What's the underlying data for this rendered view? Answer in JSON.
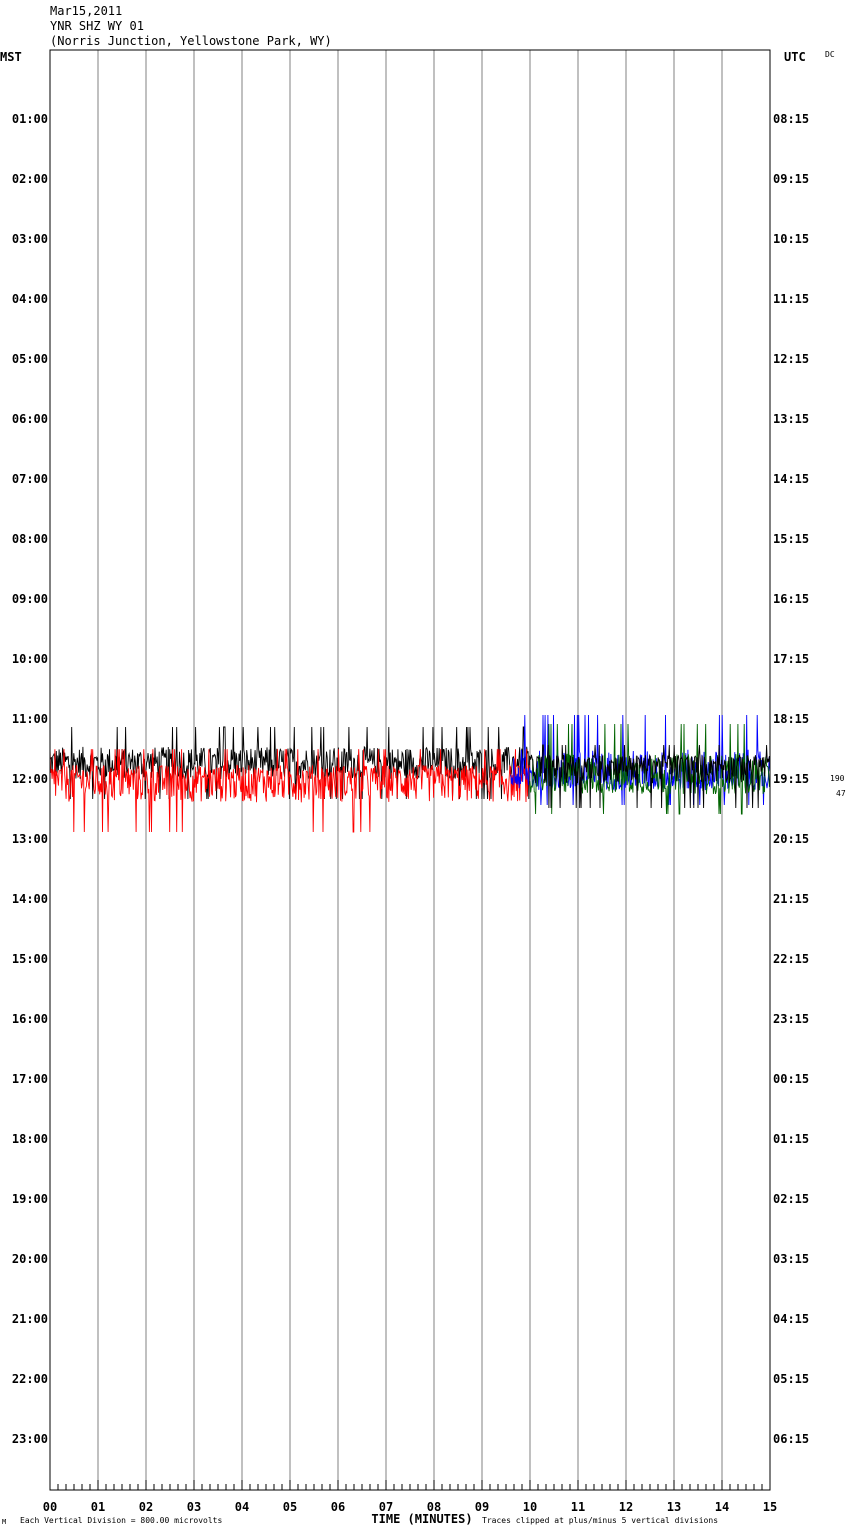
{
  "header": {
    "date": "Mar15,2011",
    "station": "YNR SHZ WY 01",
    "location": "(Norris Junction, Yellowstone Park, WY)"
  },
  "axes": {
    "left_zone": "MST",
    "right_zone": "UTC",
    "dc_label": "DC",
    "right_values": [
      "190",
      "47"
    ],
    "xlabel": "TIME (MINUTES)"
  },
  "footer": {
    "logo_mark": "M",
    "scale_note": "Each Vertical Division =  800.00 microvolts",
    "clip_note": "Traces clipped at plus/minus 5 vertical divisions"
  },
  "chart_data": {
    "type": "line",
    "x_ticks": [
      "00",
      "01",
      "02",
      "03",
      "04",
      "05",
      "06",
      "07",
      "08",
      "09",
      "10",
      "11",
      "12",
      "13",
      "14",
      "15"
    ],
    "xlim": [
      0,
      15
    ],
    "left_time_labels": [
      "01:00",
      "02:00",
      "03:00",
      "04:00",
      "05:00",
      "06:00",
      "07:00",
      "08:00",
      "09:00",
      "10:00",
      "11:00",
      "12:00",
      "13:00",
      "14:00",
      "15:00",
      "16:00",
      "17:00",
      "18:00",
      "19:00",
      "20:00",
      "21:00",
      "22:00",
      "23:00"
    ],
    "right_time_labels": [
      "08:15",
      "09:15",
      "10:15",
      "11:15",
      "12:15",
      "13:15",
      "14:15",
      "15:15",
      "16:15",
      "17:15",
      "18:15",
      "19:15",
      "20:15",
      "21:15",
      "22:15",
      "23:15",
      "00:15",
      "01:15",
      "02:15",
      "03:15",
      "04:15",
      "05:15",
      "06:15"
    ],
    "traces": [
      {
        "row": "11:45",
        "color": "#000000",
        "x_start": 0,
        "x_end": 10,
        "amp_up": 1.0,
        "amp_down": 1.0
      },
      {
        "row": "12:00",
        "color": "#ff0000",
        "x_start": 0,
        "x_end": 10,
        "amp_up": 0.8,
        "amp_down": 1.5
      },
      {
        "row": "12:00",
        "color": "#0000ff",
        "x_start": 9.6,
        "x_end": 15,
        "amp_up": 1.75,
        "amp_down": 0.75
      },
      {
        "row": "12:00",
        "color": "#006400",
        "x_start": 10,
        "x_end": 15,
        "amp_up": 1.5,
        "amp_down": 1.0
      },
      {
        "row": "11:45",
        "color": "#000000",
        "x_start": 10,
        "x_end": 15,
        "amp_up": 0.5,
        "amp_down": 1.25
      }
    ]
  }
}
